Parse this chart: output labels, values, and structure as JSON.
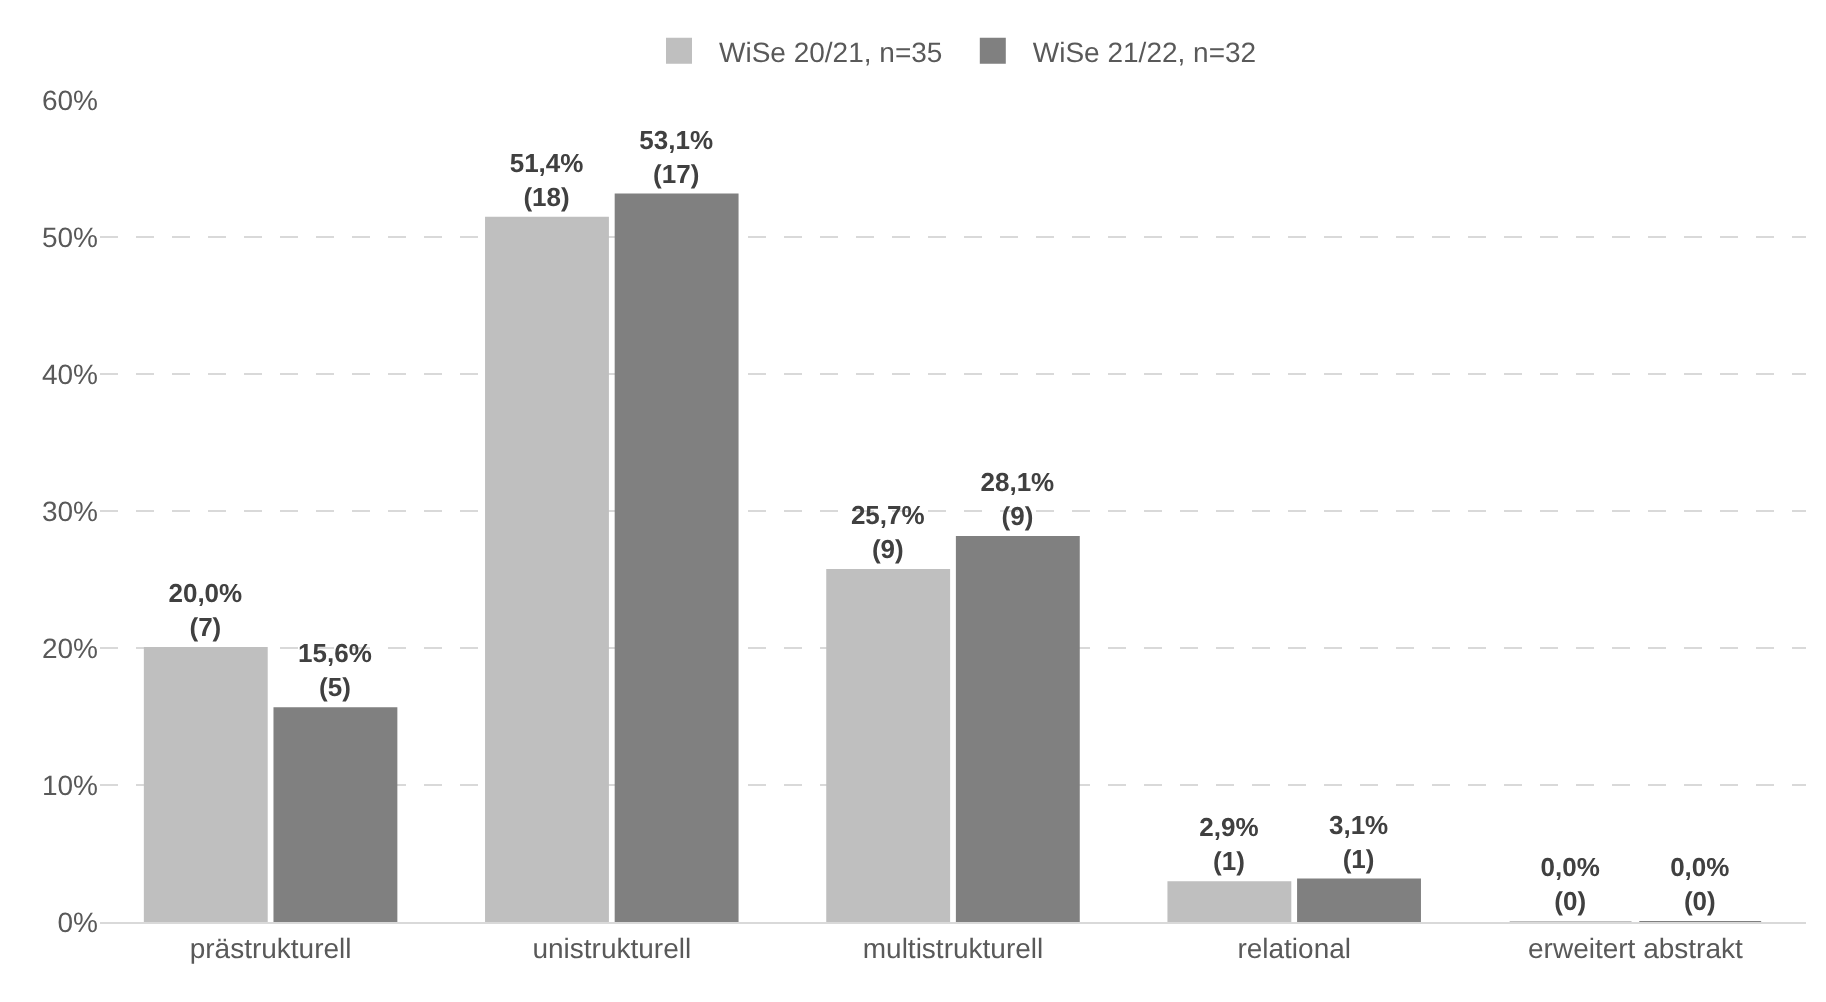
{
  "chart_data": {
    "type": "bar",
    "categories": [
      "prästrukturell",
      "unistrukturell",
      "multistrukturell",
      "relational",
      "erweitert abstrakt"
    ],
    "series": [
      {
        "name": "WiSe 20/21, n=35",
        "color": "#bfbfbf",
        "values": [
          20.0,
          51.4,
          25.7,
          2.9,
          0.0
        ],
        "value_labels": [
          "20,0%\n(7)",
          "51,4%\n(18)",
          "25,7%\n(9)",
          "2,9%\n(1)",
          "0,0%\n(0)"
        ]
      },
      {
        "name": "WiSe 21/22, n=32",
        "color": "#808080",
        "values": [
          15.6,
          53.1,
          28.1,
          3.1,
          0.0
        ],
        "value_labels": [
          "15,6%\n(5)",
          "53,1%\n(17)",
          "28,1%\n(9)",
          "3,1%\n(1)",
          "0,0%\n(0)"
        ]
      }
    ],
    "ylim": [
      0,
      60
    ],
    "yticks": [
      {
        "value": 0,
        "label": "0%"
      },
      {
        "value": 10,
        "label": "10%"
      },
      {
        "value": 20,
        "label": "20%"
      },
      {
        "value": 30,
        "label": "30%"
      },
      {
        "value": 40,
        "label": "40%"
      },
      {
        "value": 50,
        "label": "50%"
      },
      {
        "value": 60,
        "label": "60%"
      }
    ],
    "grid": "y",
    "legend": "top"
  }
}
